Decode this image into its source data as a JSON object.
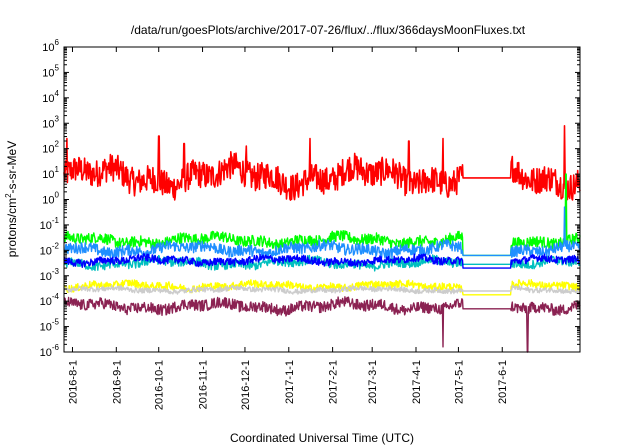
{
  "chart_data": {
    "type": "line",
    "title": "/data/run/goesPlots/archive/2017-07-26/flux/../flux/366daysMoonFluxes.txt",
    "xlabel": "Coordinated Universal Time (UTC)",
    "ylabel": {
      "base": "protons/cm",
      "sup": "2",
      "rest": "-s-sr-MeV"
    },
    "yscale": "log",
    "ylim": [
      -6,
      6
    ],
    "yticks": [
      {
        "base": "10",
        "exp": "-6"
      },
      {
        "base": "10",
        "exp": "-5"
      },
      {
        "base": "10",
        "exp": "-4"
      },
      {
        "base": "10",
        "exp": "-3"
      },
      {
        "base": "10",
        "exp": "-2"
      },
      {
        "base": "10",
        "exp": "-1"
      },
      {
        "base": "10",
        "exp": "0"
      },
      {
        "base": "10",
        "exp": "1"
      },
      {
        "base": "10",
        "exp": "2"
      },
      {
        "base": "10",
        "exp": "3"
      },
      {
        "base": "10",
        "exp": "4"
      },
      {
        "base": "10",
        "exp": "5"
      },
      {
        "base": "10",
        "exp": "6"
      }
    ],
    "xlim": [
      "2016-07-26",
      "2017-07-26"
    ],
    "xticks": [
      "2016-8-1",
      "2016-9-1",
      "2016-10-1",
      "2016-11-1",
      "2016-12-1",
      "2017-1-1",
      "2017-2-1",
      "2017-3-1",
      "2017-4-1",
      "2017-5-1",
      "2017-6-1"
    ],
    "xtick_dates": [
      "2016-08-01",
      "2016-09-01",
      "2016-10-01",
      "2016-11-01",
      "2016-12-01",
      "2017-01-01",
      "2017-02-01",
      "2017-03-01",
      "2017-04-01",
      "2017-05-01",
      "2017-06-01"
    ],
    "gap": [
      "2017-05-04",
      "2017-06-07"
    ],
    "grid": false,
    "legend": "none",
    "series": [
      {
        "color": "#ff0000",
        "log10_level": 0.9,
        "noise": 0.55,
        "gap_log10": 0.85,
        "spikes": [
          [
            "2016-07-28",
            2.4
          ],
          [
            "2016-10-01",
            2.5
          ],
          [
            "2016-10-19",
            2.2
          ],
          [
            "2016-12-02",
            2.1
          ],
          [
            "2017-01-16",
            2.4
          ],
          [
            "2017-03-27",
            2.3
          ],
          [
            "2017-04-20",
            2.4
          ],
          [
            "2017-07-15",
            2.9
          ]
        ]
      },
      {
        "color": "#00ff00",
        "log10_level": -1.6,
        "noise": 0.22,
        "gap_log10": -2.2,
        "spikes": [
          [
            "2017-07-16",
            1.0
          ]
        ]
      },
      {
        "color": "#1f8fff",
        "log10_level": -1.95,
        "noise": 0.22,
        "gap_log10": -2.2,
        "spikes": [
          [
            "2017-07-15",
            -0.3
          ]
        ]
      },
      {
        "color": "#00bfbf",
        "log10_level": -2.5,
        "noise": 0.18,
        "gap_log10": -2.55,
        "spikes": []
      },
      {
        "color": "#0000ff",
        "log10_level": -2.4,
        "noise": 0.15,
        "gap_log10": -2.7,
        "spikes": []
      },
      {
        "color": "#ffff00",
        "log10_level": -3.4,
        "noise": 0.15,
        "gap_log10": -3.75,
        "spikes": []
      },
      {
        "color": "#cccccc",
        "log10_level": -3.55,
        "noise": 0.1,
        "gap_log10": -3.6,
        "spikes": []
      },
      {
        "color": "#8b2252",
        "log10_level": -4.2,
        "noise": 0.22,
        "gap_log10": -4.3,
        "spikes": [
          [
            "2017-04-20",
            -5.8
          ],
          [
            "2017-06-19",
            -6.0
          ]
        ]
      }
    ]
  }
}
